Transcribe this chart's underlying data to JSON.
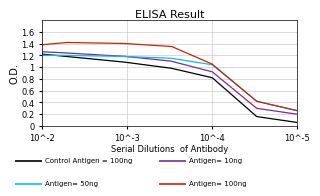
{
  "title": "ELISA Result",
  "xlabel": "Serial Dilutions  of Antibody",
  "ylabel": "O.D.",
  "xlim_left": 0.01,
  "xlim_right": 1e-05,
  "ylim": [
    0,
    1.8
  ],
  "yticks": [
    0,
    0.2,
    0.4,
    0.6,
    0.8,
    1.0,
    1.2,
    1.4,
    1.6
  ],
  "xtick_vals": [
    0.01,
    0.001,
    0.0001,
    1e-05
  ],
  "xtick_labels": [
    "10^-2",
    "10^-3",
    "10^-4",
    "10^-5"
  ],
  "lines": [
    {
      "label": "Control Antigen = 100ng",
      "color": "#000000",
      "x": [
        0.01,
        0.005,
        0.001,
        0.0003,
        0.0001,
        3e-05,
        1e-05
      ],
      "y": [
        1.22,
        1.18,
        1.08,
        0.98,
        0.82,
        0.16,
        0.06
      ]
    },
    {
      "label": "Antigen= 10ng",
      "color": "#7B2D8B",
      "x": [
        0.01,
        0.005,
        0.001,
        0.0003,
        0.0001,
        3e-05,
        1e-05
      ],
      "y": [
        1.26,
        1.24,
        1.18,
        1.1,
        0.92,
        0.3,
        0.2
      ]
    },
    {
      "label": "Antigen= 50ng",
      "color": "#00BFFF",
      "x": [
        0.01,
        0.005,
        0.001,
        0.0003,
        0.0001,
        3e-05,
        1e-05
      ],
      "y": [
        1.2,
        1.2,
        1.18,
        1.15,
        1.04,
        0.42,
        0.26
      ]
    },
    {
      "label": "Antigen= 100ng",
      "color": "#CC2200",
      "x": [
        0.01,
        0.005,
        0.001,
        0.0003,
        0.0001,
        3e-05,
        1e-05
      ],
      "y": [
        1.38,
        1.42,
        1.4,
        1.35,
        1.05,
        0.42,
        0.26
      ]
    }
  ],
  "legend": [
    {
      "label": "Control Antigen = 100ng",
      "color": "#000000"
    },
    {
      "label": "Antigen= 10ng",
      "color": "#7B2D8B"
    },
    {
      "label": "Antigen= 50ng",
      "color": "#00BFFF"
    },
    {
      "label": "Antigen= 100ng",
      "color": "#CC2200"
    }
  ],
  "bg_color": "#ffffff",
  "fig_color": "#ffffff",
  "grid_color": "#cccccc",
  "title_fontsize": 8,
  "axis_label_fontsize": 6,
  "tick_fontsize": 6,
  "legend_fontsize": 5
}
